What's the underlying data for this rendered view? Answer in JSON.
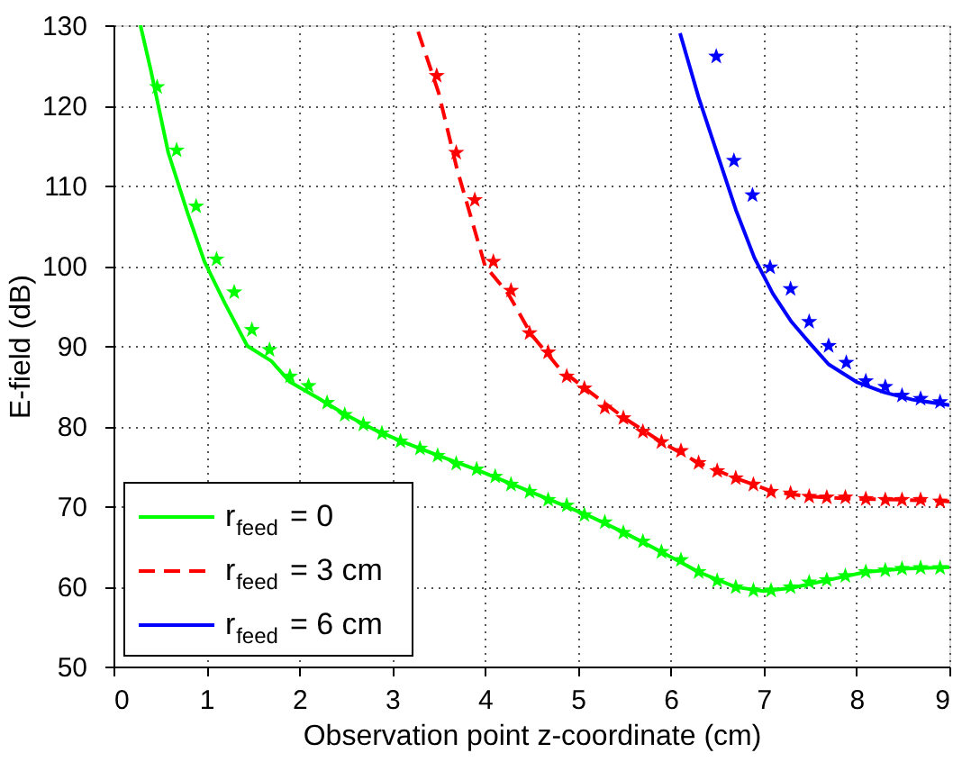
{
  "chart_data": {
    "type": "line",
    "xlabel": "Observation point z-coordinate (cm)",
    "ylabel": "E-field (dB)",
    "xlim": [
      0,
      9
    ],
    "xticks": [
      0,
      1,
      2,
      3,
      4,
      5,
      6,
      7,
      8,
      9
    ],
    "ylim": [
      50,
      130
    ],
    "yticks": [
      50,
      60,
      70,
      80,
      90,
      100,
      110,
      120,
      130
    ],
    "grid": true,
    "legend": "bottom left",
    "series": [
      {
        "name": "r$_{feed}$ = 0",
        "line_style": "solid",
        "color": "#00ff00",
        "x": [
          0.29,
          0.4,
          0.59,
          0.8,
          0.98,
          1.2,
          1.44,
          1.7,
          1.9,
          2.2,
          2.5,
          2.8,
          3.1,
          3.5,
          3.9,
          4.3,
          4.7,
          5.1,
          5.5,
          5.9,
          6.3,
          6.7,
          7.0,
          7.3,
          7.7,
          8.1,
          8.5,
          9.0
        ],
        "values": [
          130,
          124.5,
          114.1,
          106.5,
          100.5,
          95.3,
          90,
          88.1,
          85.5,
          83.5,
          81.4,
          79.6,
          78.1,
          76.3,
          74.6,
          72.7,
          70.8,
          68.9,
          66.7,
          64.3,
          61.8,
          59.9,
          59.4,
          59.8,
          60.8,
          61.8,
          62.2,
          62.4
        ]
      },
      {
        "name": "r$_{feed}$ = 3 cm",
        "line_style": "dashed",
        "color": "#ff0000",
        "x": [
          3.28,
          3.5,
          3.7,
          4.0,
          4.25,
          4.5,
          4.8,
          5.1,
          5.5,
          5.9,
          6.3,
          6.7,
          7.1,
          7.5,
          8.0,
          8.5,
          9.0
        ],
        "values": [
          129.2,
          121.6,
          112,
          100,
          96.5,
          91.4,
          87.2,
          84.5,
          81,
          78,
          75.4,
          73.5,
          71.8,
          71.2,
          70.9,
          70.8,
          70.6
        ]
      },
      {
        "name": "r$_{feed}$ = 6 cm",
        "line_style": "solid",
        "color": "#0000ff",
        "x": [
          6.1,
          6.3,
          6.5,
          6.7,
          6.9,
          7.1,
          7.3,
          7.5,
          7.7,
          8.0,
          8.3,
          8.6,
          9.0
        ],
        "values": [
          129,
          121,
          114,
          107,
          101,
          96.5,
          93,
          90.3,
          87.7,
          85.5,
          84.2,
          83.3,
          82.6
        ]
      },
      {
        "type": "scatter",
        "marker": "star",
        "color": "#00ff00",
        "x": [
          0.47,
          0.68,
          0.89,
          1.11,
          1.3,
          1.49,
          1.68,
          1.9,
          2.1,
          2.3,
          2.49,
          2.69,
          2.89,
          3.09,
          3.3,
          3.49,
          3.69,
          3.91,
          4.11,
          4.28,
          4.48,
          4.68,
          4.88,
          5.07,
          5.29,
          5.49,
          5.7,
          5.9,
          6.11,
          6.3,
          6.5,
          6.7,
          6.89,
          7.08,
          7.29,
          7.49,
          7.68,
          7.88,
          8.1,
          8.31,
          8.49,
          8.69,
          8.9
        ],
        "values": [
          122.3,
          114.4,
          107.4,
          100.8,
          96.7,
          92,
          89.5,
          86.2,
          85,
          82.9,
          81.4,
          80.2,
          79.1,
          78.1,
          77.2,
          76.3,
          75.3,
          74.6,
          73.7,
          72.7,
          71.8,
          70.8,
          70.1,
          68.9,
          68,
          66.7,
          65.6,
          64.3,
          63.3,
          61.8,
          60.7,
          59.9,
          59.5,
          59.5,
          59.9,
          60.5,
          60.8,
          61.3,
          61.8,
          62,
          62.2,
          62.3,
          62.3
        ]
      },
      {
        "type": "scatter",
        "marker": "star",
        "color": "#ff0000",
        "x": [
          3.48,
          3.69,
          3.89,
          4.09,
          4.28,
          4.48,
          4.68,
          4.88,
          5.07,
          5.29,
          5.49,
          5.7,
          5.9,
          6.11,
          6.3,
          6.5,
          6.7,
          6.89,
          7.08,
          7.29,
          7.49,
          7.68,
          7.88,
          8.1,
          8.31,
          8.49,
          8.69,
          8.9
        ],
        "values": [
          123.7,
          114.1,
          108.2,
          100.5,
          96.9,
          91.6,
          89.2,
          86.2,
          84.7,
          82.3,
          81,
          79.3,
          78,
          76.9,
          75.4,
          74.4,
          73.5,
          72.7,
          71.8,
          71.6,
          71.2,
          71.1,
          71.1,
          70.9,
          70.8,
          70.8,
          70.8,
          70.6
        ]
      },
      {
        "type": "scatter",
        "marker": "star",
        "color": "#0000ff",
        "x": [
          6.49,
          6.68,
          6.88,
          7.07,
          7.29,
          7.49,
          7.7,
          7.89,
          8.1,
          8.31,
          8.49,
          8.69,
          8.9
        ],
        "values": [
          126.1,
          113.1,
          108.8,
          99.8,
          97.1,
          93,
          90,
          87.9,
          85.6,
          84.9,
          83.8,
          83.4,
          83
        ]
      }
    ]
  }
}
